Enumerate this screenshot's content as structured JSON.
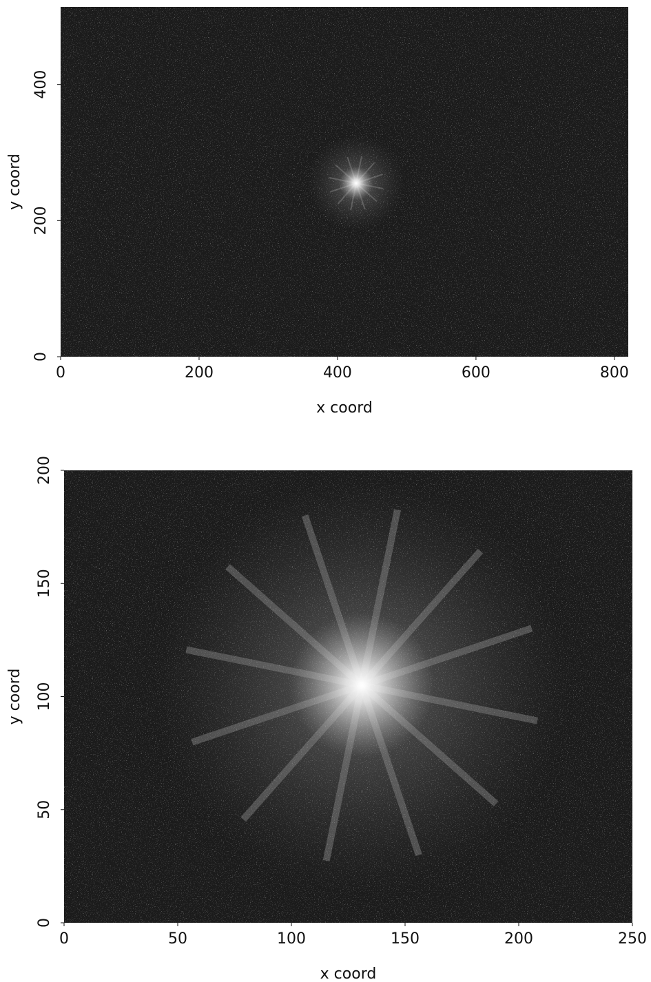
{
  "chart_data": [
    {
      "type": "image",
      "xlabel": "x coord",
      "ylabel": "y coord",
      "xlim": [
        0,
        820
      ],
      "ylim": [
        0,
        514
      ],
      "xticks": [
        0,
        200,
        400,
        600,
        800
      ],
      "yticks": [
        0,
        200,
        400
      ],
      "peak": {
        "x": 427,
        "y": 255
      }
    },
    {
      "type": "image",
      "xlabel": "x coord",
      "ylabel": "y coord",
      "xlim": [
        0,
        250
      ],
      "ylim": [
        0,
        200
      ],
      "xticks": [
        0,
        50,
        100,
        150,
        200,
        250
      ],
      "yticks": [
        0,
        50,
        100,
        150,
        200
      ],
      "peak": {
        "x": 131,
        "y": 105
      }
    }
  ]
}
